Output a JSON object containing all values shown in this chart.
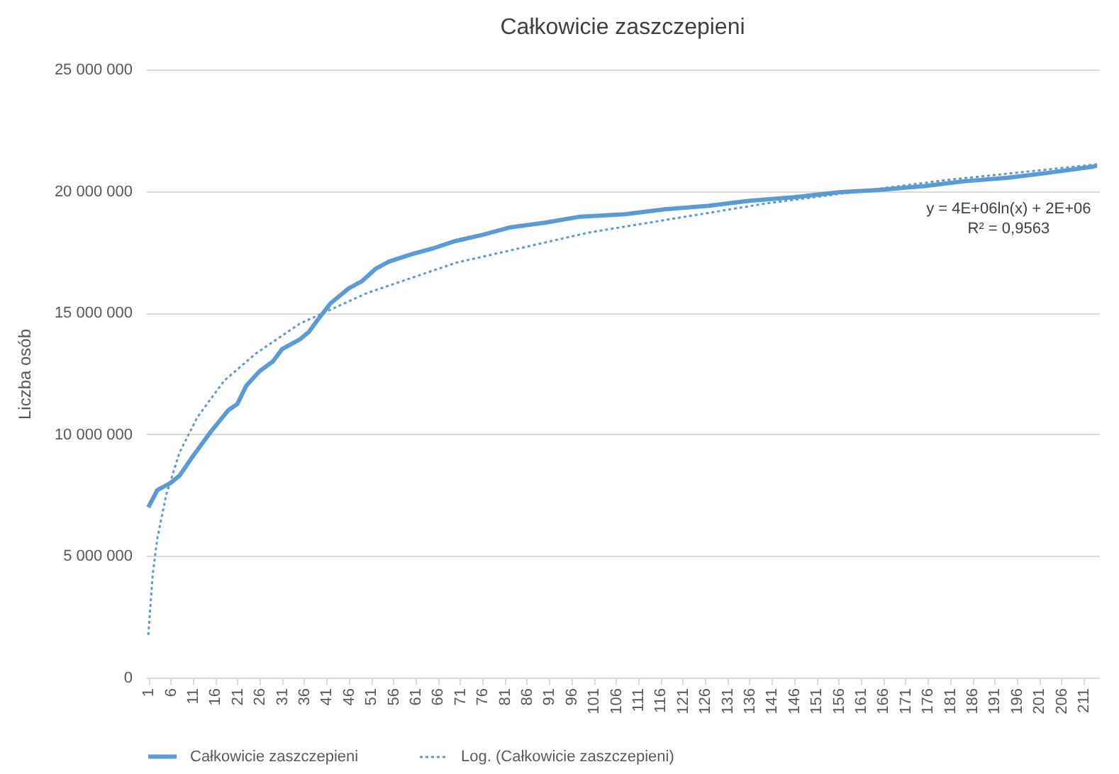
{
  "chart_data": {
    "type": "line",
    "title": "Całkowicie zaszczepieni",
    "ylabel": "Liczba osób",
    "xlim": [
      0.5,
      214.5
    ],
    "xticks": [
      1,
      6,
      11,
      16,
      21,
      26,
      31,
      36,
      41,
      46,
      51,
      56,
      61,
      66,
      71,
      76,
      81,
      86,
      91,
      96,
      101,
      106,
      111,
      116,
      121,
      126,
      131,
      136,
      141,
      146,
      151,
      156,
      161,
      166,
      171,
      176,
      181,
      186,
      191,
      196,
      201,
      206,
      211
    ],
    "ylim": [
      0,
      25000000
    ],
    "yticks": [
      {
        "value": 0,
        "label": "0"
      },
      {
        "value": 5000000,
        "label": "5 000 000"
      },
      {
        "value": 10000000,
        "label": "10 000 000"
      },
      {
        "value": 15000000,
        "label": "15 000 000"
      },
      {
        "value": 20000000,
        "label": "20 000 000"
      },
      {
        "value": 25000000,
        "label": "25 000 000"
      }
    ],
    "grid": "y",
    "legend": "bottom",
    "annotations": [
      "y = 4E+06ln(x) + 2E+06",
      "R² = 0,9563"
    ],
    "series": [
      {
        "name": "Całkowicie zaszczepieni",
        "color": "#5b9bd5",
        "line_style": "solid",
        "x": [
          1,
          3,
          6,
          8,
          11,
          13,
          15,
          19,
          21,
          23,
          26,
          29,
          31,
          35,
          37,
          39,
          42,
          46,
          49,
          52,
          55,
          60,
          65,
          70,
          76,
          82,
          90,
          98,
          108,
          117,
          127,
          136,
          146,
          156,
          165,
          175,
          184,
          194,
          203,
          213,
          214
        ],
        "values": [
          7000000,
          7700000,
          8000000,
          8300000,
          9100000,
          9600000,
          10100000,
          11000000,
          11250000,
          12000000,
          12600000,
          13000000,
          13500000,
          13900000,
          14200000,
          14700000,
          15400000,
          16000000,
          16300000,
          16800000,
          17100000,
          17400000,
          17650000,
          17950000,
          18200000,
          18500000,
          18700000,
          18950000,
          19050000,
          19250000,
          19400000,
          19600000,
          19750000,
          19950000,
          20050000,
          20200000,
          20400000,
          20550000,
          20750000,
          21000000,
          21050000
        ]
      },
      {
        "name": "Log. (Całkowicie zaszczepieni)",
        "color": "#5b9bd5",
        "type": "line",
        "line_style": "dotted",
        "x": [
          1,
          2,
          3,
          5,
          8,
          12,
          18,
          25,
          35,
          50,
          70,
          100,
          140,
          180,
          214
        ],
        "values": [
          1750000,
          4250000,
          5700000,
          7500000,
          9250000,
          10700000,
          12200000,
          13300000,
          14550000,
          15800000,
          17050000,
          18300000,
          19500000,
          20450000,
          21100000
        ]
      }
    ]
  }
}
